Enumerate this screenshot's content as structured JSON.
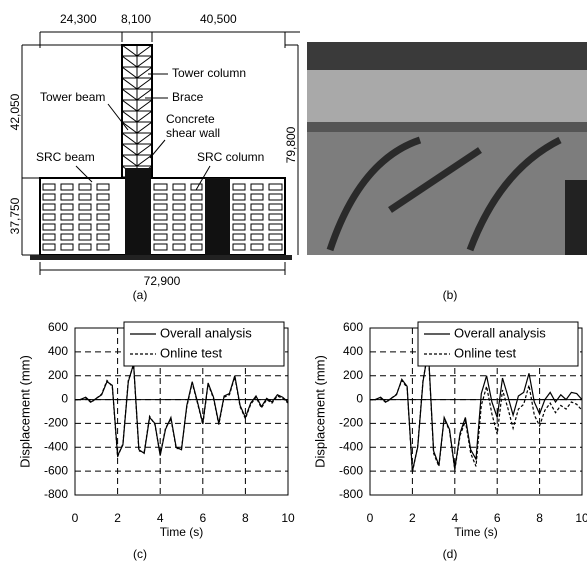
{
  "diagram": {
    "dimensions": {
      "top": [
        "24,300",
        "8,100",
        "40,500"
      ],
      "left": [
        "42,050",
        "37,750"
      ],
      "right": "79,800",
      "bottom": "72,900"
    },
    "labels": {
      "tower_column": "Tower column",
      "brace": "Brace",
      "tower_beam": "Tower beam",
      "concrete": "Concrete",
      "shear_wall": "shear wall",
      "src_beam": "SRC beam",
      "src_column": "SRC column"
    },
    "caption": "(a)"
  },
  "photo": {
    "caption": "(b)"
  },
  "chart_data": [
    {
      "type": "line",
      "caption": "(c)",
      "xlabel": "Time (s)",
      "ylabel": "Displacement (mm)",
      "x": [
        0,
        0.25,
        0.5,
        0.75,
        1,
        1.25,
        1.5,
        1.75,
        2,
        2.25,
        2.5,
        2.75,
        3,
        3.25,
        3.5,
        3.75,
        4,
        4.25,
        4.5,
        4.75,
        5,
        5.25,
        5.5,
        5.75,
        6,
        6.25,
        6.5,
        6.75,
        7,
        7.25,
        7.5,
        7.75,
        8,
        8.25,
        8.5,
        8.75,
        9,
        9.25,
        9.5,
        9.75,
        10
      ],
      "xlim": [
        0,
        10
      ],
      "xticks": [
        0,
        2,
        4,
        6,
        8,
        10
      ],
      "ylim": [
        -800,
        600
      ],
      "yticks": [
        -800,
        -600,
        -400,
        -200,
        0,
        200,
        400,
        600
      ],
      "grid": true,
      "legend": "upper right",
      "series": [
        {
          "name": "Overall analysis",
          "color": "#000000",
          "line_style": "solid",
          "values": [
            0,
            0,
            20,
            -20,
            10,
            40,
            150,
            120,
            -470,
            -380,
            150,
            300,
            -420,
            -450,
            -150,
            -200,
            -470,
            -250,
            -150,
            -400,
            -420,
            -50,
            150,
            -20,
            -200,
            140,
            20,
            -200,
            30,
            50,
            200,
            -50,
            -150,
            -30,
            30,
            -60,
            10,
            -20,
            40,
            20,
            -20
          ]
        },
        {
          "name": "Online test",
          "color": "#000000",
          "line_style": "dashed",
          "values": [
            0,
            0,
            15,
            -25,
            10,
            45,
            160,
            110,
            -480,
            -370,
            160,
            290,
            -430,
            -440,
            -140,
            -210,
            -460,
            -240,
            -160,
            -410,
            -410,
            -60,
            140,
            -30,
            -210,
            130,
            10,
            -210,
            20,
            40,
            190,
            -60,
            -160,
            -40,
            20,
            -70,
            0,
            -30,
            30,
            10,
            -30
          ]
        }
      ]
    },
    {
      "type": "line",
      "caption": "(d)",
      "xlabel": "Time (s)",
      "ylabel": "Displacement (mm)",
      "x": [
        0,
        0.25,
        0.5,
        0.75,
        1,
        1.25,
        1.5,
        1.75,
        2,
        2.25,
        2.5,
        2.75,
        3,
        3.25,
        3.5,
        3.75,
        4,
        4.25,
        4.5,
        4.75,
        5,
        5.25,
        5.5,
        5.75,
        6,
        6.25,
        6.5,
        6.75,
        7,
        7.25,
        7.5,
        7.75,
        8,
        8.25,
        8.5,
        8.75,
        9,
        9.25,
        9.5,
        9.75,
        10
      ],
      "xlim": [
        0,
        10
      ],
      "xticks": [
        0,
        2,
        4,
        6,
        8,
        10
      ],
      "ylim": [
        -800,
        600
      ],
      "yticks": [
        -800,
        -600,
        -400,
        -200,
        0,
        200,
        400,
        600
      ],
      "grid": true,
      "legend": "upper right",
      "series": [
        {
          "name": "Overall analysis",
          "color": "#000000",
          "line_style": "solid",
          "values": [
            0,
            0,
            20,
            -20,
            10,
            40,
            170,
            110,
            -600,
            -400,
            150,
            420,
            -430,
            -550,
            -150,
            -250,
            -580,
            -280,
            -150,
            -420,
            -500,
            50,
            200,
            -20,
            -150,
            180,
            30,
            -130,
            30,
            60,
            220,
            -20,
            -120,
            0,
            60,
            -20,
            40,
            0,
            60,
            50,
            0
          ]
        },
        {
          "name": "Online test",
          "color": "#000000",
          "line_style": "dashed",
          "values": [
            0,
            0,
            15,
            -25,
            10,
            45,
            160,
            100,
            -610,
            -390,
            160,
            410,
            -450,
            -560,
            -160,
            -260,
            -590,
            -300,
            -180,
            -450,
            -560,
            -50,
            110,
            -120,
            -290,
            80,
            -70,
            -240,
            -80,
            -40,
            120,
            -130,
            -220,
            -90,
            -30,
            -110,
            -50,
            -80,
            -20,
            -40,
            -90
          ]
        }
      ]
    }
  ]
}
